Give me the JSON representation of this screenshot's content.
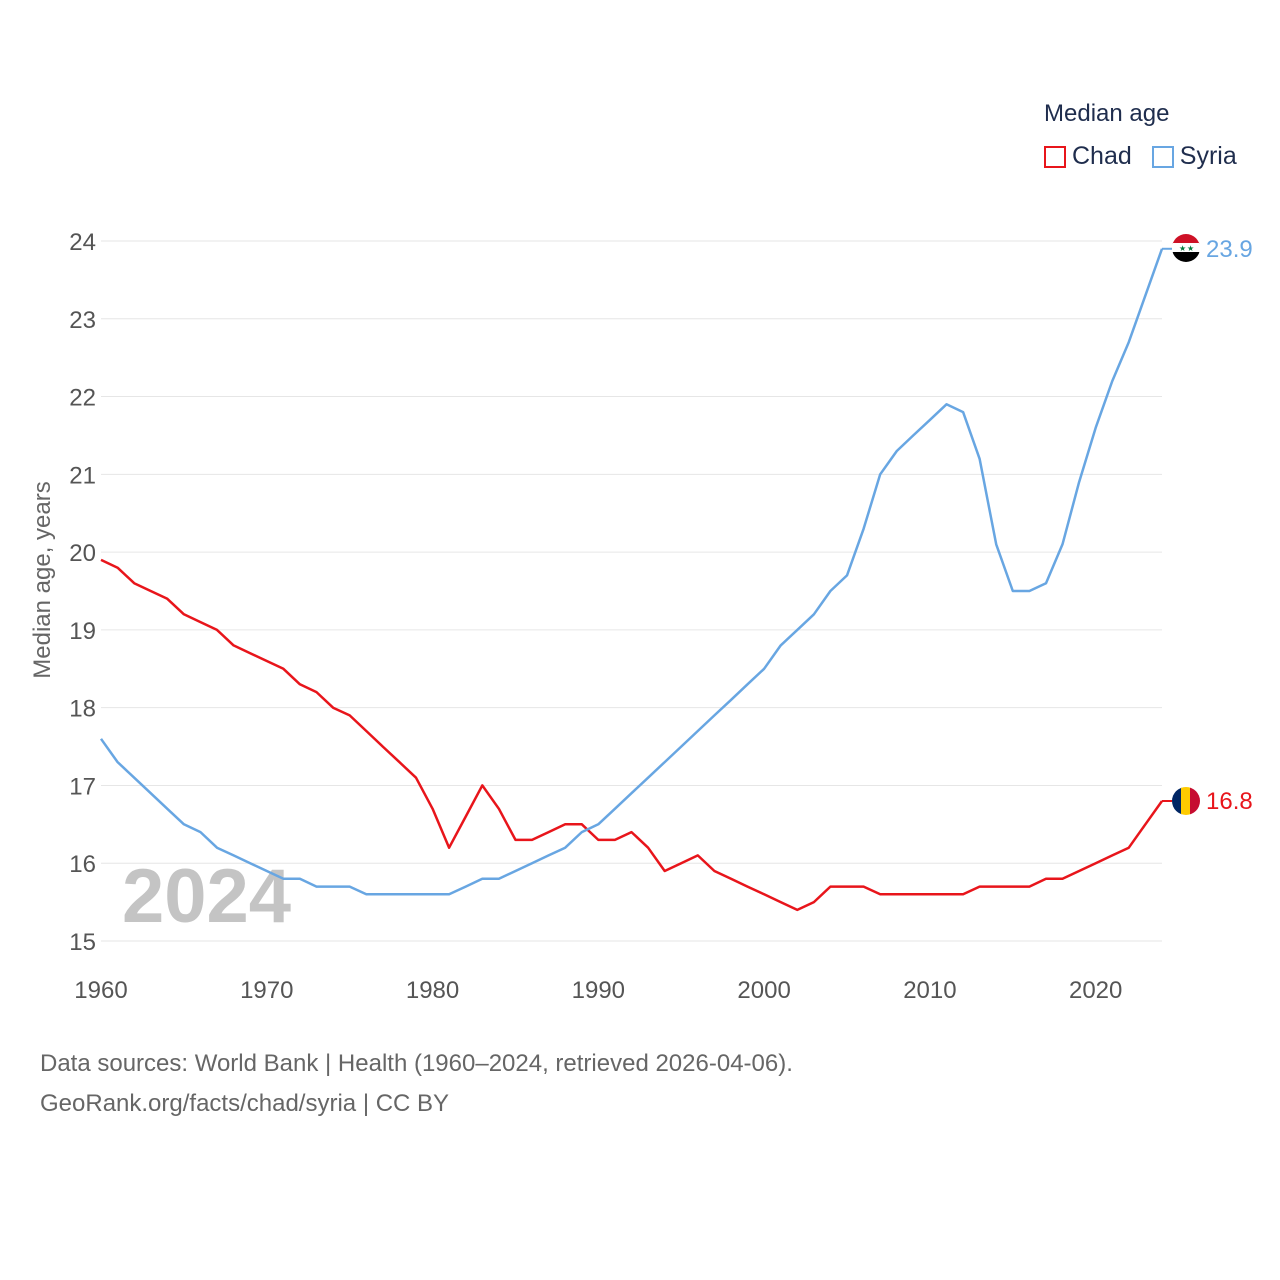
{
  "legend": {
    "title": "Median age",
    "items": [
      {
        "name": "Chad",
        "color": "#e8151b"
      },
      {
        "name": "Syria",
        "color": "#68a6e2"
      }
    ]
  },
  "chart_data": {
    "type": "line",
    "title": "Median age",
    "ylabel": "Median age, years",
    "xlabel": "",
    "xlim": [
      1960,
      2024
    ],
    "ylim": [
      15,
      24
    ],
    "x_ticks": [
      1960,
      1970,
      1980,
      1990,
      2000,
      2010,
      2020
    ],
    "y_ticks": [
      15,
      16,
      17,
      18,
      19,
      20,
      21,
      22,
      23,
      24
    ],
    "year_watermark": "2024",
    "x": [
      1960,
      1961,
      1962,
      1963,
      1964,
      1965,
      1966,
      1967,
      1968,
      1969,
      1970,
      1971,
      1972,
      1973,
      1974,
      1975,
      1976,
      1977,
      1978,
      1979,
      1980,
      1981,
      1982,
      1983,
      1984,
      1985,
      1986,
      1987,
      1988,
      1989,
      1990,
      1991,
      1992,
      1993,
      1994,
      1995,
      1996,
      1997,
      1998,
      1999,
      2000,
      2001,
      2002,
      2003,
      2004,
      2005,
      2006,
      2007,
      2008,
      2009,
      2010,
      2011,
      2012,
      2013,
      2014,
      2015,
      2016,
      2017,
      2018,
      2019,
      2020,
      2021,
      2022,
      2023,
      2024
    ],
    "series": [
      {
        "name": "Chad",
        "color": "#e8151b",
        "end_label": "16.8",
        "values": [
          19.9,
          19.8,
          19.6,
          19.5,
          19.4,
          19.2,
          19.1,
          19.0,
          18.8,
          18.7,
          18.6,
          18.5,
          18.3,
          18.2,
          18.0,
          17.9,
          17.7,
          17.5,
          17.3,
          17.1,
          16.7,
          16.2,
          16.6,
          17.0,
          16.7,
          16.3,
          16.3,
          16.4,
          16.5,
          16.5,
          16.3,
          16.3,
          16.4,
          16.2,
          15.9,
          16.0,
          16.1,
          15.9,
          15.8,
          15.7,
          15.6,
          15.5,
          15.4,
          15.5,
          15.7,
          15.7,
          15.7,
          15.6,
          15.6,
          15.6,
          15.6,
          15.6,
          15.6,
          15.7,
          15.7,
          15.7,
          15.7,
          15.8,
          15.8,
          15.9,
          16.0,
          16.1,
          16.2,
          16.5,
          16.8
        ]
      },
      {
        "name": "Syria",
        "color": "#68a6e2",
        "end_label": "23.9",
        "values": [
          17.6,
          17.3,
          17.1,
          16.9,
          16.7,
          16.5,
          16.4,
          16.2,
          16.1,
          16.0,
          15.9,
          15.8,
          15.8,
          15.7,
          15.7,
          15.7,
          15.6,
          15.6,
          15.6,
          15.6,
          15.6,
          15.6,
          15.7,
          15.8,
          15.8,
          15.9,
          16.0,
          16.1,
          16.2,
          16.4,
          16.5,
          16.7,
          16.9,
          17.1,
          17.3,
          17.5,
          17.7,
          17.9,
          18.1,
          18.3,
          18.5,
          18.8,
          19.0,
          19.2,
          19.5,
          19.7,
          20.3,
          21.0,
          21.3,
          21.5,
          21.7,
          21.9,
          21.8,
          21.2,
          20.1,
          19.5,
          19.5,
          19.6,
          20.1,
          20.9,
          21.6,
          22.2,
          22.7,
          23.3,
          23.9
        ]
      }
    ]
  },
  "sources": {
    "line1": "Data sources: World Bank | Health (1960–2024, retrieved 2026-04-06).",
    "line2": "GeoRank.org/facts/chad/syria | CC BY"
  }
}
